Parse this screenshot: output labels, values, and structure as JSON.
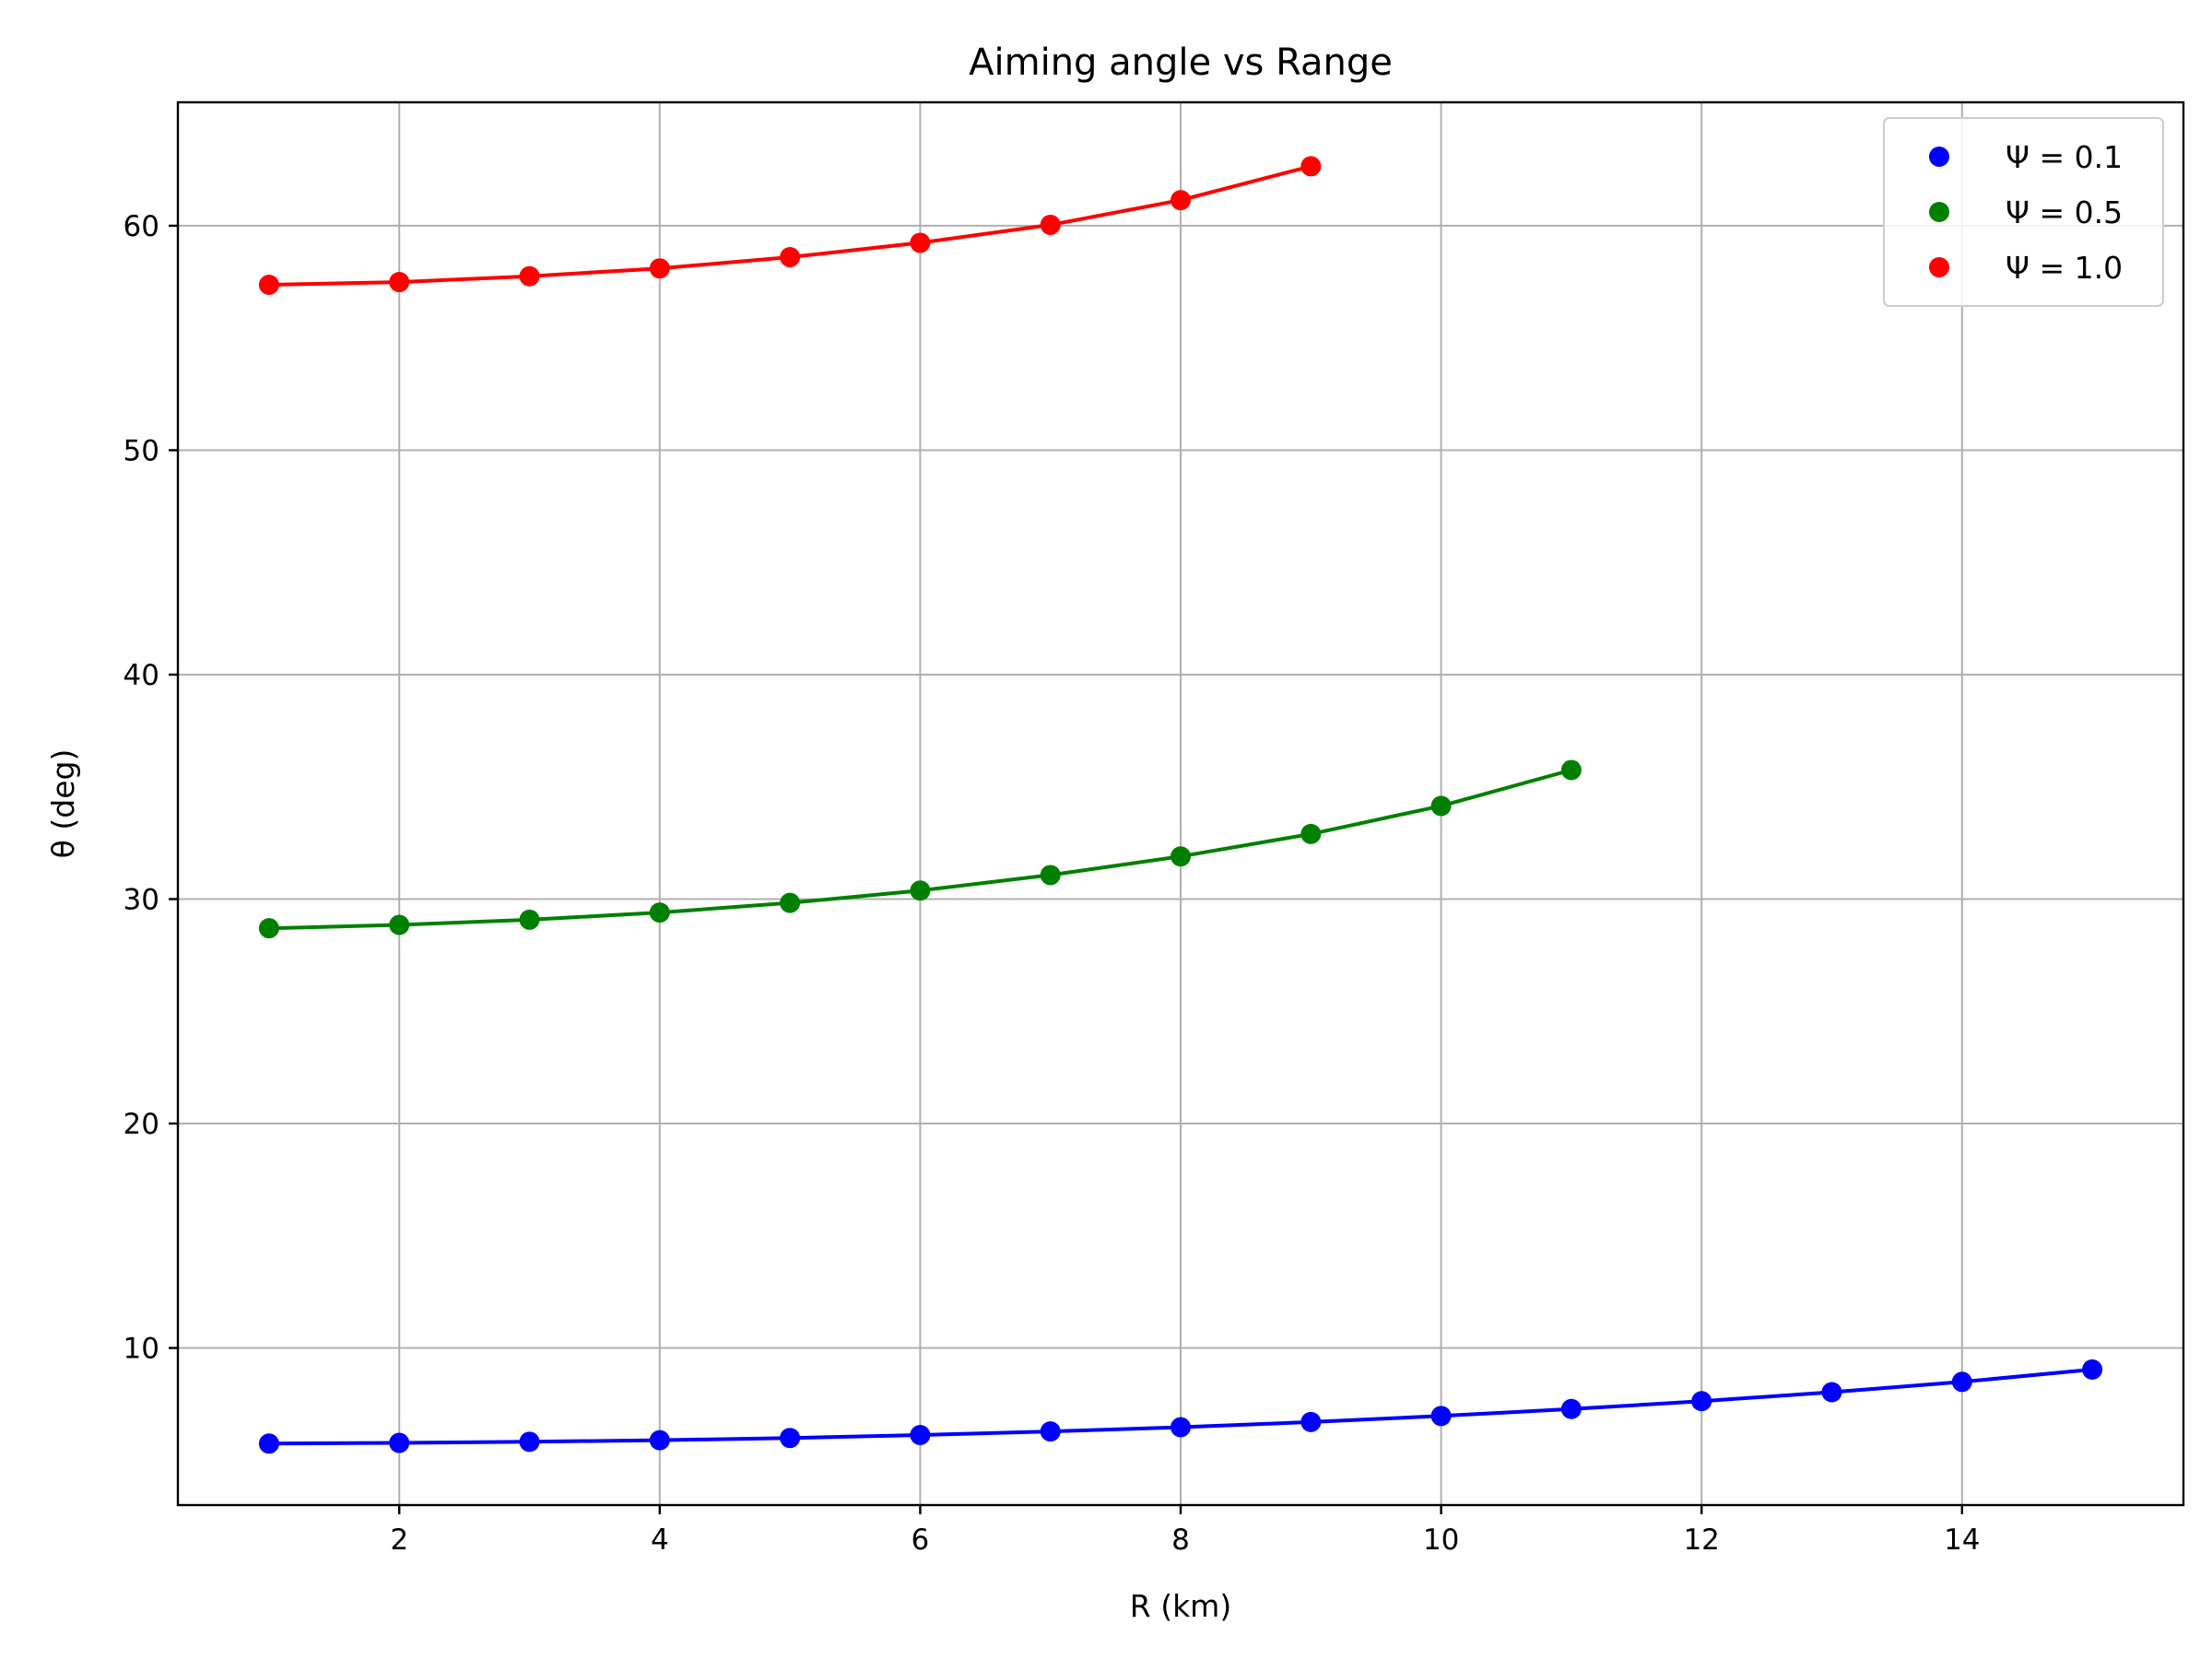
{
  "chart_data": {
    "type": "line",
    "title": "Aiming angle vs Range",
    "xlabel": "R (km)",
    "ylabel": "θ (deg)",
    "xlim": [
      0.3,
      15.7
    ],
    "ylim": [
      3.0,
      65.5
    ],
    "xticks": [
      2,
      4,
      6,
      8,
      10,
      12,
      14
    ],
    "yticks": [
      10,
      20,
      30,
      40,
      50,
      60
    ],
    "grid": true,
    "legend_position": "top-right",
    "series": [
      {
        "name": "Ψ = 0.1",
        "color": "#0000ff",
        "x": [
          1,
          2,
          3,
          4,
          5,
          6,
          7,
          8,
          9,
          10,
          11,
          12,
          13,
          14,
          15
        ],
        "y": [
          5.74,
          5.77,
          5.82,
          5.89,
          5.99,
          6.12,
          6.28,
          6.47,
          6.7,
          6.97,
          7.28,
          7.63,
          8.03,
          8.49,
          9.04
        ]
      },
      {
        "name": "Ψ = 0.5",
        "color": "#008000",
        "x": [
          1,
          2,
          3,
          4,
          5,
          6,
          7,
          8,
          9,
          10,
          11
        ],
        "y": [
          28.7,
          28.85,
          29.08,
          29.4,
          29.83,
          30.38,
          31.07,
          31.9,
          32.9,
          34.15,
          35.75
        ]
      },
      {
        "name": "Ψ = 1.0",
        "color": "#ff0000",
        "x": [
          1,
          2,
          3,
          4,
          5,
          6,
          7,
          8,
          9
        ],
        "y": [
          57.37,
          57.49,
          57.75,
          58.1,
          58.6,
          59.24,
          60.04,
          61.14,
          62.65
        ]
      }
    ]
  }
}
